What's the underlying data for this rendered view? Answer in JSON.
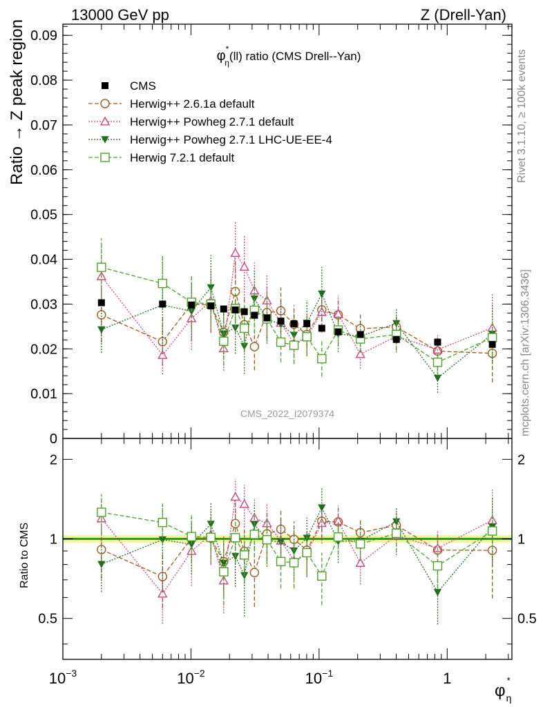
{
  "header": {
    "left": "13000 GeV pp",
    "right": "Z (Drell-Yan)"
  },
  "side_texts": {
    "rivet": "Rivet 3.1.10, ≥ 100k events",
    "mcplots": "mcplots.cern.ch [arXiv:1306.3436]"
  },
  "chart_data": {
    "type": "scatter",
    "title_main": "φ",
    "title_sup": "*",
    "title_sub": "η",
    "title_rest": "(ll) ratio (CMS Drell--Yan)",
    "watermark": "CMS_2022_I2079374",
    "ylabel": "Ratio → Z peak region",
    "ratio_ylabel": "Ratio to CMS",
    "xlabel_main": "φ",
    "xlabel_sup": "*",
    "xlabel_sub": "η",
    "xscale": "log",
    "xlim": [
      0.001,
      3.2
    ],
    "ylim": [
      0,
      0.0925
    ],
    "ratio_ylim": [
      0.35,
      2.4
    ],
    "x_ticks": [
      {
        "value": 0.001,
        "base": "10",
        "exp": "−3"
      },
      {
        "value": 0.01,
        "base": "10",
        "exp": "−2"
      },
      {
        "value": 0.1,
        "base": "10",
        "exp": "−1"
      },
      {
        "value": 1,
        "base": "1",
        "exp": ""
      }
    ],
    "y_ticks": [
      {
        "value": 0,
        "label": "0"
      },
      {
        "value": 0.01,
        "label": "0.01"
      },
      {
        "value": 0.02,
        "label": "0.02"
      },
      {
        "value": 0.03,
        "label": "0.03"
      },
      {
        "value": 0.04,
        "label": "0.04"
      },
      {
        "value": 0.05,
        "label": "0.05"
      },
      {
        "value": 0.06,
        "label": "0.06"
      },
      {
        "value": 0.07,
        "label": "0.07"
      },
      {
        "value": 0.08,
        "label": "0.08"
      },
      {
        "value": 0.09,
        "label": "0.09"
      }
    ],
    "ratio_ticks": [
      {
        "value": 0.5,
        "label": "0.5"
      },
      {
        "value": 1,
        "label": "1"
      },
      {
        "value": 2,
        "label": "2"
      }
    ],
    "x": [
      0.002,
      0.006,
      0.0101,
      0.0143,
      0.018,
      0.0222,
      0.0261,
      0.0313,
      0.0392,
      0.0503,
      0.0637,
      0.0803,
      0.105,
      0.141,
      0.21,
      0.401,
      0.842,
      2.25
    ],
    "data": {
      "name": "CMS",
      "values": [
        0.0303,
        0.03,
        0.0298,
        0.0296,
        0.0289,
        0.0287,
        0.0283,
        0.0275,
        0.0269,
        0.0262,
        0.0256,
        0.0256,
        0.0246,
        0.0238,
        0.0232,
        0.0221,
        0.0215,
        0.021
      ]
    },
    "series": [
      {
        "name": "Herwig++ 2.6.1a default",
        "color": "#a05a1c",
        "marker": "circle-open",
        "dash": "dashed",
        "values": [
          0.0276,
          0.0216,
          0.03,
          0.0298,
          0.0237,
          0.0328,
          0.0254,
          0.0205,
          0.0281,
          0.0285,
          0.0255,
          0.0232,
          0.0287,
          0.0276,
          0.0245,
          0.0249,
          0.0195,
          0.019
        ],
        "errors": [
          0.0062,
          0.0052,
          0.0058,
          0.0062,
          0.0062,
          0.0068,
          0.0062,
          0.0053,
          0.0058,
          0.0052,
          0.0043,
          0.0043,
          0.004,
          0.0033,
          0.0033,
          0.0028,
          0.003,
          0.0065
        ]
      },
      {
        "name": "Herwig++ Powheg 2.7.1 default",
        "color": "#d0457c",
        "marker": "triangle-open",
        "dash": "dotted",
        "values": [
          0.0362,
          0.0186,
          0.0268,
          0.0307,
          0.0201,
          0.0414,
          0.0383,
          0.033,
          0.0308,
          0.0258,
          0.0212,
          0.0226,
          0.0282,
          0.0278,
          0.0188,
          0.0228,
          0.0198,
          0.0247
        ],
        "errors": [
          0.0072,
          0.0043,
          0.007,
          0.0071,
          0.005,
          0.007,
          0.007,
          0.0063,
          0.0058,
          0.005,
          0.0045,
          0.0043,
          0.0046,
          0.0041,
          0.0032,
          0.0036,
          0.0032,
          0.0076
        ]
      },
      {
        "name": "Herwig++ Powheg 2.7.1 LHC-UE-EE-4",
        "color": "#236b23",
        "marker": "triangle-down-filled",
        "dash": "dotted",
        "values": [
          0.0243,
          0.0298,
          0.0284,
          0.0337,
          0.0234,
          0.0247,
          0.0206,
          0.0312,
          0.0266,
          0.0255,
          0.0231,
          0.0258,
          0.0323,
          0.0233,
          0.0228,
          0.0257,
          0.0135,
          0.0233
        ],
        "errors": [
          0.0052,
          0.011,
          0.0065,
          0.0072,
          0.0052,
          0.0058,
          0.0062,
          0.0063,
          0.0055,
          0.0055,
          0.005,
          0.005,
          0.006,
          0.004,
          0.0036,
          0.0033,
          0.0033,
          0.0067
        ]
      },
      {
        "name": "Herwig 7.2.1 default",
        "color": "#4ea22a",
        "marker": "square-open",
        "dash": "dashed",
        "values": [
          0.0382,
          0.0346,
          0.0304,
          0.03,
          0.0217,
          0.029,
          0.0246,
          0.0286,
          0.0267,
          0.0215,
          0.0208,
          0.0227,
          0.0178,
          0.0242,
          0.0222,
          0.0232,
          0.017,
          0.0225
        ],
        "errors": [
          0.0065,
          0.006,
          0.0062,
          0.0055,
          0.0055,
          0.0058,
          0.0052,
          0.0052,
          0.0052,
          0.0045,
          0.0042,
          0.0043,
          0.004,
          0.0034,
          0.003,
          0.0036,
          0.003,
          0.0043
        ]
      }
    ]
  }
}
